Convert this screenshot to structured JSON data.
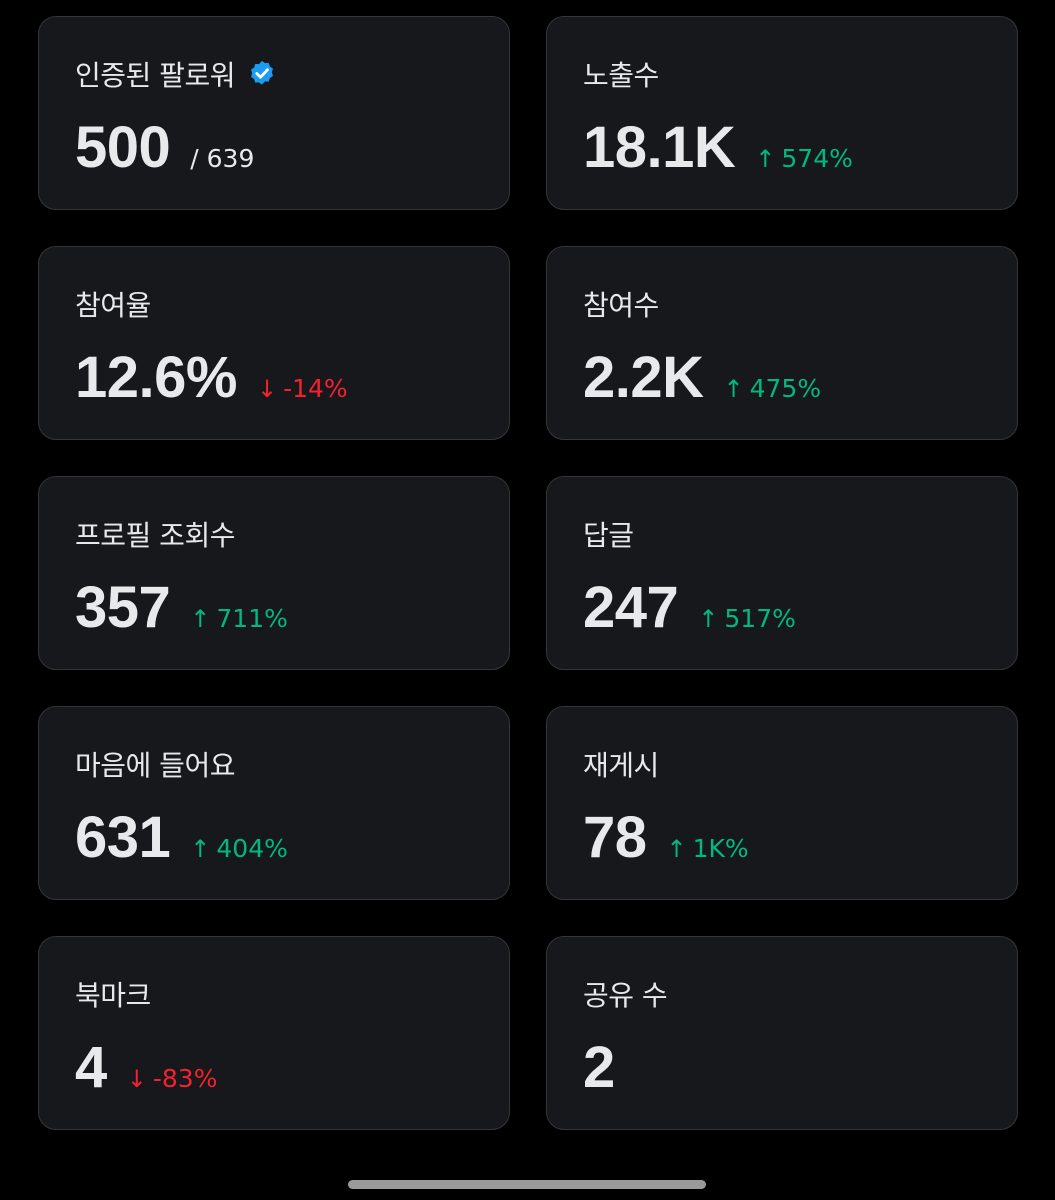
{
  "cards": [
    {
      "title": "인증된 팔로워",
      "value": "500",
      "suffix": "/ 639",
      "verified_icon": "verified-badge-icon",
      "verified_color": "#1d9bf0"
    },
    {
      "title": "노출수",
      "value": "18.1K",
      "change": "574%",
      "direction": "up"
    },
    {
      "title": "참여율",
      "value": "12.6%",
      "change": "-14%",
      "direction": "down"
    },
    {
      "title": "참여수",
      "value": "2.2K",
      "change": "475%",
      "direction": "up"
    },
    {
      "title": "프로필 조회수",
      "value": "357",
      "change": "711%",
      "direction": "up"
    },
    {
      "title": "답글",
      "value": "247",
      "change": "517%",
      "direction": "up"
    },
    {
      "title": "마음에 들어요",
      "value": "631",
      "change": "404%",
      "direction": "up"
    },
    {
      "title": "재게시",
      "value": "78",
      "change": "1K%",
      "direction": "up"
    },
    {
      "title": "북마크",
      "value": "4",
      "change": "-83%",
      "direction": "down"
    },
    {
      "title": "공유 수",
      "value": "2"
    }
  ],
  "arrows": {
    "up": "↑",
    "down": "↓"
  },
  "colors": {
    "up": "#00ba7c",
    "down": "#f4212e",
    "card_bg": "#16181c",
    "card_border": "#333639",
    "page_bg": "#000000"
  }
}
